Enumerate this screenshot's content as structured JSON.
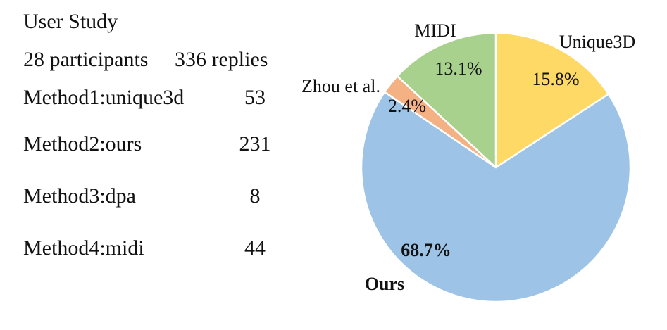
{
  "study": {
    "title": "User Study",
    "participants": "28 participants",
    "replies": "336 replies",
    "methods": [
      {
        "label": "Method1:unique3d",
        "count": "53"
      },
      {
        "label": "Method2:ours",
        "count": "231"
      },
      {
        "label": "Method3:dpa",
        "count": "8"
      },
      {
        "label": "Method4:midi",
        "count": "44"
      }
    ]
  },
  "chart_data": {
    "type": "pie",
    "slices": [
      {
        "name": "Unique3D",
        "value": 15.8,
        "label": "15.8%",
        "color": "#FFD966",
        "bold": false
      },
      {
        "name": "Ours",
        "value": 68.7,
        "label": "68.7%",
        "color": "#9DC3E6",
        "bold": true
      },
      {
        "name": "Zhou et al.",
        "value": 2.4,
        "label": "2.4%",
        "color": "#F4B183",
        "bold": false
      },
      {
        "name": "MIDI",
        "value": 13.1,
        "label": "13.1%",
        "color": "#A9D18E",
        "bold": false
      }
    ]
  }
}
